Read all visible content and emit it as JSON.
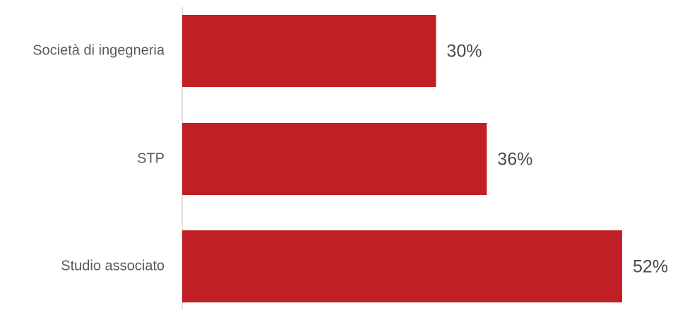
{
  "chart_data": {
    "type": "bar",
    "orientation": "horizontal",
    "categories": [
      "Società di ingegneria",
      "STP",
      "Studio associato"
    ],
    "values": [
      30,
      36,
      52
    ],
    "value_labels": [
      "30%",
      "36%",
      "52%"
    ],
    "unit": "%",
    "xlim": [
      0,
      53
    ],
    "grid": false,
    "legend": "none",
    "colors": {
      "bar": "#c01f26",
      "axis": "#d9d9d9",
      "category_text": "#5a5a5a",
      "value_text": "#4a4a4a"
    }
  }
}
